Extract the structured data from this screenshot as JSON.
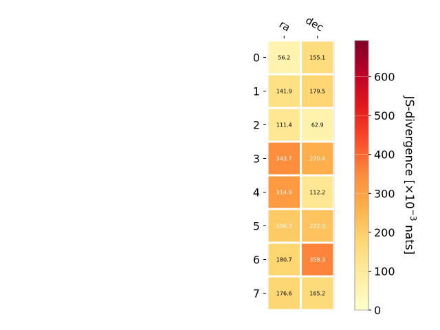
{
  "chart_data": {
    "type": "heatmap",
    "columns": [
      "ra",
      "dec"
    ],
    "rows": [
      "0",
      "1",
      "2",
      "3",
      "4",
      "5",
      "6",
      "7"
    ],
    "values": [
      [
        56.2,
        155.1
      ],
      [
        141.9,
        179.5
      ],
      [
        111.4,
        62.9
      ],
      [
        343.7,
        270.4
      ],
      [
        314.9,
        112.2
      ],
      [
        206.3,
        222.0
      ],
      [
        180.7,
        358.3
      ],
      [
        176.6,
        165.2
      ]
    ],
    "value_labels": [
      [
        "56.2",
        "155.1"
      ],
      [
        "141.9",
        "179.5"
      ],
      [
        "111.4",
        "62.9"
      ],
      [
        "343.7",
        "270.4"
      ],
      [
        "314.9",
        "112.2"
      ],
      [
        "206.3",
        "222.0"
      ],
      [
        "180.7",
        "358.3"
      ],
      [
        "176.6",
        "165.2"
      ]
    ],
    "colormap": "YlOrRd",
    "colorbar": {
      "label": "JS-divergence [×10",
      "label_exponent": "−3",
      "label_suffix": " nats]",
      "range": [
        0,
        693
      ],
      "ticks": [
        0,
        100,
        200,
        300,
        400,
        500,
        600
      ],
      "tick_labels": [
        "0",
        "100",
        "200",
        "300",
        "400",
        "500",
        "600"
      ]
    },
    "colors": {
      "cell_border": "#ffffff",
      "text_dark": "#000000",
      "text_light": "#ffffff"
    }
  }
}
